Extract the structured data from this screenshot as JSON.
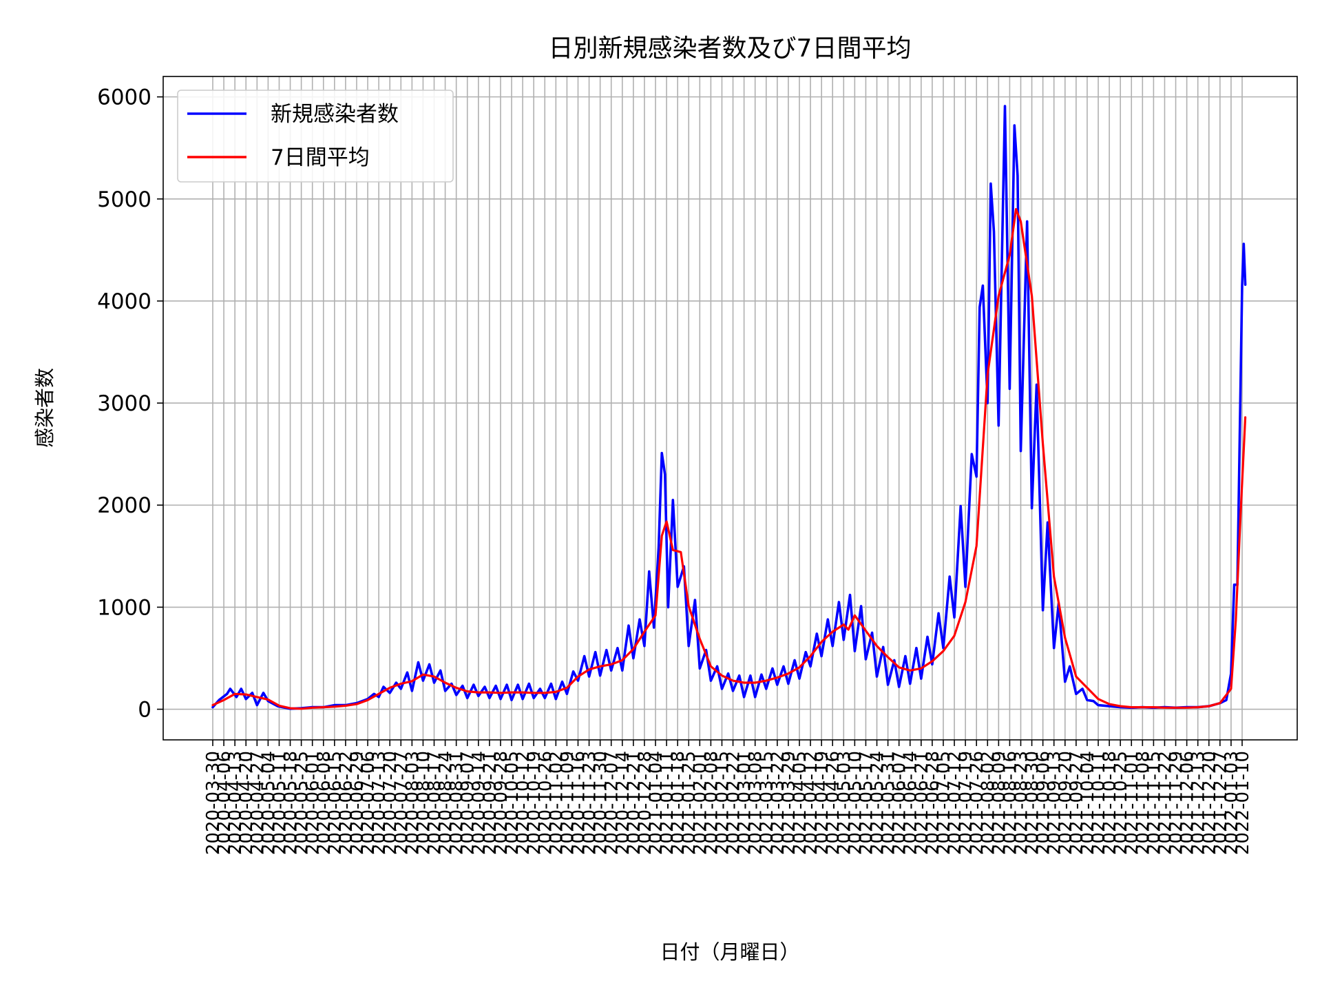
{
  "chart_data": {
    "type": "line",
    "title": "日別新規感染者数及び7日間平均",
    "xlabel": "日付（月曜日）",
    "ylabel": "感染者数",
    "x_start": "2020-03-30",
    "x_end": "2022-01-10",
    "x_tick_interval_days": 7,
    "x_tick_label_rotation": 90,
    "ylim": [
      -300,
      6200
    ],
    "yticks": [
      0,
      1000,
      2000,
      3000,
      4000,
      5000,
      6000
    ],
    "grid": true,
    "legend_position": "upper-left",
    "series": [
      {
        "name": "新規感染者数",
        "color": "#0000ff",
        "points": [
          [
            "2020-03-30",
            20
          ],
          [
            "2020-04-03",
            90
          ],
          [
            "2020-04-08",
            150
          ],
          [
            "2020-04-10",
            200
          ],
          [
            "2020-04-14",
            120
          ],
          [
            "2020-04-17",
            200
          ],
          [
            "2020-04-20",
            100
          ],
          [
            "2020-04-24",
            160
          ],
          [
            "2020-04-27",
            40
          ],
          [
            "2020-05-01",
            160
          ],
          [
            "2020-05-04",
            80
          ],
          [
            "2020-05-10",
            30
          ],
          [
            "2020-05-18",
            5
          ],
          [
            "2020-05-25",
            10
          ],
          [
            "2020-06-01",
            20
          ],
          [
            "2020-06-08",
            20
          ],
          [
            "2020-06-15",
            40
          ],
          [
            "2020-06-22",
            40
          ],
          [
            "2020-06-29",
            60
          ],
          [
            "2020-07-06",
            100
          ],
          [
            "2020-07-10",
            150
          ],
          [
            "2020-07-13",
            120
          ],
          [
            "2020-07-16",
            220
          ],
          [
            "2020-07-20",
            160
          ],
          [
            "2020-07-24",
            260
          ],
          [
            "2020-07-27",
            200
          ],
          [
            "2020-07-31",
            360
          ],
          [
            "2020-08-03",
            180
          ],
          [
            "2020-08-07",
            460
          ],
          [
            "2020-08-10",
            280
          ],
          [
            "2020-08-14",
            440
          ],
          [
            "2020-08-17",
            260
          ],
          [
            "2020-08-21",
            380
          ],
          [
            "2020-08-24",
            180
          ],
          [
            "2020-08-28",
            250
          ],
          [
            "2020-08-31",
            140
          ],
          [
            "2020-09-04",
            230
          ],
          [
            "2020-09-07",
            110
          ],
          [
            "2020-09-11",
            240
          ],
          [
            "2020-09-14",
            130
          ],
          [
            "2020-09-18",
            220
          ],
          [
            "2020-09-21",
            110
          ],
          [
            "2020-09-25",
            230
          ],
          [
            "2020-09-28",
            100
          ],
          [
            "2020-10-02",
            240
          ],
          [
            "2020-10-05",
            90
          ],
          [
            "2020-10-09",
            240
          ],
          [
            "2020-10-12",
            100
          ],
          [
            "2020-10-16",
            250
          ],
          [
            "2020-10-19",
            110
          ],
          [
            "2020-10-23",
            200
          ],
          [
            "2020-10-26",
            110
          ],
          [
            "2020-10-30",
            250
          ],
          [
            "2020-11-02",
            100
          ],
          [
            "2020-11-06",
            270
          ],
          [
            "2020-11-09",
            150
          ],
          [
            "2020-11-13",
            370
          ],
          [
            "2020-11-16",
            280
          ],
          [
            "2020-11-20",
            520
          ],
          [
            "2020-11-23",
            320
          ],
          [
            "2020-11-27",
            560
          ],
          [
            "2020-11-30",
            330
          ],
          [
            "2020-12-04",
            580
          ],
          [
            "2020-12-07",
            380
          ],
          [
            "2020-12-11",
            600
          ],
          [
            "2020-12-14",
            380
          ],
          [
            "2020-12-18",
            820
          ],
          [
            "2020-12-21",
            500
          ],
          [
            "2020-12-25",
            880
          ],
          [
            "2020-12-28",
            620
          ],
          [
            "2020-12-31",
            1350
          ],
          [
            "2021-01-03",
            800
          ],
          [
            "2021-01-06",
            1590
          ],
          [
            "2021-01-08",
            2510
          ],
          [
            "2021-01-10",
            2300
          ],
          [
            "2021-01-12",
            1000
          ],
          [
            "2021-01-15",
            2050
          ],
          [
            "2021-01-18",
            1200
          ],
          [
            "2021-01-22",
            1400
          ],
          [
            "2021-01-25",
            620
          ],
          [
            "2021-01-29",
            1070
          ],
          [
            "2021-02-01",
            400
          ],
          [
            "2021-02-05",
            580
          ],
          [
            "2021-02-08",
            280
          ],
          [
            "2021-02-12",
            420
          ],
          [
            "2021-02-15",
            200
          ],
          [
            "2021-02-19",
            350
          ],
          [
            "2021-02-22",
            180
          ],
          [
            "2021-02-26",
            330
          ],
          [
            "2021-03-01",
            120
          ],
          [
            "2021-03-05",
            330
          ],
          [
            "2021-03-08",
            120
          ],
          [
            "2021-03-12",
            340
          ],
          [
            "2021-03-15",
            200
          ],
          [
            "2021-03-19",
            400
          ],
          [
            "2021-03-22",
            240
          ],
          [
            "2021-03-26",
            420
          ],
          [
            "2021-03-29",
            250
          ],
          [
            "2021-04-02",
            480
          ],
          [
            "2021-04-05",
            300
          ],
          [
            "2021-04-09",
            560
          ],
          [
            "2021-04-12",
            420
          ],
          [
            "2021-04-16",
            740
          ],
          [
            "2021-04-19",
            520
          ],
          [
            "2021-04-23",
            880
          ],
          [
            "2021-04-26",
            620
          ],
          [
            "2021-04-30",
            1050
          ],
          [
            "2021-05-03",
            680
          ],
          [
            "2021-05-07",
            1120
          ],
          [
            "2021-05-10",
            570
          ],
          [
            "2021-05-14",
            1010
          ],
          [
            "2021-05-17",
            490
          ],
          [
            "2021-05-21",
            750
          ],
          [
            "2021-05-24",
            320
          ],
          [
            "2021-05-28",
            610
          ],
          [
            "2021-05-31",
            240
          ],
          [
            "2021-06-04",
            480
          ],
          [
            "2021-06-07",
            220
          ],
          [
            "2021-06-11",
            520
          ],
          [
            "2021-06-14",
            250
          ],
          [
            "2021-06-18",
            600
          ],
          [
            "2021-06-21",
            300
          ],
          [
            "2021-06-25",
            710
          ],
          [
            "2021-06-28",
            440
          ],
          [
            "2021-07-02",
            940
          ],
          [
            "2021-07-05",
            600
          ],
          [
            "2021-07-09",
            1300
          ],
          [
            "2021-07-12",
            900
          ],
          [
            "2021-07-16",
            1990
          ],
          [
            "2021-07-19",
            1200
          ],
          [
            "2021-07-23",
            2500
          ],
          [
            "2021-07-26",
            2280
          ],
          [
            "2021-07-28",
            3940
          ],
          [
            "2021-07-30",
            4150
          ],
          [
            "2021-08-02",
            3000
          ],
          [
            "2021-08-04",
            5150
          ],
          [
            "2021-08-06",
            4680
          ],
          [
            "2021-08-09",
            2780
          ],
          [
            "2021-08-13",
            5910
          ],
          [
            "2021-08-16",
            3140
          ],
          [
            "2021-08-19",
            5720
          ],
          [
            "2021-08-21",
            5230
          ],
          [
            "2021-08-23",
            2530
          ],
          [
            "2021-08-27",
            4780
          ],
          [
            "2021-08-30",
            1970
          ],
          [
            "2021-09-02",
            3180
          ],
          [
            "2021-09-06",
            970
          ],
          [
            "2021-09-09",
            1830
          ],
          [
            "2021-09-13",
            600
          ],
          [
            "2021-09-16",
            1040
          ],
          [
            "2021-09-20",
            270
          ],
          [
            "2021-09-23",
            420
          ],
          [
            "2021-09-27",
            150
          ],
          [
            "2021-10-01",
            200
          ],
          [
            "2021-10-04",
            90
          ],
          [
            "2021-10-08",
            80
          ],
          [
            "2021-10-11",
            40
          ],
          [
            "2021-10-18",
            30
          ],
          [
            "2021-10-25",
            20
          ],
          [
            "2021-11-01",
            15
          ],
          [
            "2021-11-08",
            20
          ],
          [
            "2021-11-15",
            15
          ],
          [
            "2021-11-22",
            20
          ],
          [
            "2021-11-29",
            15
          ],
          [
            "2021-12-06",
            20
          ],
          [
            "2021-12-13",
            20
          ],
          [
            "2021-12-20",
            30
          ],
          [
            "2021-12-27",
            60
          ],
          [
            "2021-12-31",
            90
          ],
          [
            "2022-01-03",
            350
          ],
          [
            "2022-01-05",
            1220
          ],
          [
            "2022-01-07",
            1220
          ],
          [
            "2022-01-10",
            4150
          ],
          [
            "2022-01-11",
            4560
          ],
          [
            "2022-01-12",
            4160
          ]
        ]
      },
      {
        "name": "7日間平均",
        "color": "#ff0000",
        "points": [
          [
            "2020-03-30",
            40
          ],
          [
            "2020-04-06",
            90
          ],
          [
            "2020-04-13",
            150
          ],
          [
            "2020-04-20",
            145
          ],
          [
            "2020-04-27",
            120
          ],
          [
            "2020-05-04",
            95
          ],
          [
            "2020-05-11",
            35
          ],
          [
            "2020-05-18",
            10
          ],
          [
            "2020-05-25",
            5
          ],
          [
            "2020-06-01",
            15
          ],
          [
            "2020-06-08",
            20
          ],
          [
            "2020-06-15",
            25
          ],
          [
            "2020-06-22",
            35
          ],
          [
            "2020-06-29",
            50
          ],
          [
            "2020-07-06",
            90
          ],
          [
            "2020-07-13",
            150
          ],
          [
            "2020-07-20",
            210
          ],
          [
            "2020-07-27",
            250
          ],
          [
            "2020-08-03",
            275
          ],
          [
            "2020-08-10",
            340
          ],
          [
            "2020-08-17",
            320
          ],
          [
            "2020-08-24",
            260
          ],
          [
            "2020-08-31",
            210
          ],
          [
            "2020-09-07",
            175
          ],
          [
            "2020-09-14",
            165
          ],
          [
            "2020-09-21",
            165
          ],
          [
            "2020-09-28",
            160
          ],
          [
            "2020-10-05",
            165
          ],
          [
            "2020-10-12",
            165
          ],
          [
            "2020-10-19",
            160
          ],
          [
            "2020-10-26",
            160
          ],
          [
            "2020-11-02",
            170
          ],
          [
            "2020-11-09",
            210
          ],
          [
            "2020-11-16",
            320
          ],
          [
            "2020-11-23",
            390
          ],
          [
            "2020-11-30",
            420
          ],
          [
            "2020-12-07",
            440
          ],
          [
            "2020-12-14",
            480
          ],
          [
            "2020-12-21",
            590
          ],
          [
            "2020-12-28",
            760
          ],
          [
            "2021-01-04",
            920
          ],
          [
            "2021-01-08",
            1700
          ],
          [
            "2021-01-11",
            1840
          ],
          [
            "2021-01-15",
            1560
          ],
          [
            "2021-01-20",
            1540
          ],
          [
            "2021-01-25",
            1010
          ],
          [
            "2021-02-01",
            690
          ],
          [
            "2021-02-08",
            420
          ],
          [
            "2021-02-15",
            330
          ],
          [
            "2021-02-22",
            280
          ],
          [
            "2021-03-01",
            260
          ],
          [
            "2021-03-08",
            260
          ],
          [
            "2021-03-15",
            280
          ],
          [
            "2021-03-22",
            310
          ],
          [
            "2021-03-29",
            350
          ],
          [
            "2021-04-05",
            410
          ],
          [
            "2021-04-12",
            520
          ],
          [
            "2021-04-19",
            660
          ],
          [
            "2021-04-26",
            760
          ],
          [
            "2021-05-03",
            830
          ],
          [
            "2021-05-06",
            780
          ],
          [
            "2021-05-10",
            920
          ],
          [
            "2021-05-17",
            770
          ],
          [
            "2021-05-24",
            620
          ],
          [
            "2021-05-31",
            510
          ],
          [
            "2021-06-07",
            410
          ],
          [
            "2021-06-14",
            380
          ],
          [
            "2021-06-21",
            400
          ],
          [
            "2021-06-28",
            470
          ],
          [
            "2021-07-05",
            570
          ],
          [
            "2021-07-12",
            720
          ],
          [
            "2021-07-19",
            1050
          ],
          [
            "2021-07-26",
            1600
          ],
          [
            "2021-08-02",
            3280
          ],
          [
            "2021-08-09",
            4050
          ],
          [
            "2021-08-16",
            4450
          ],
          [
            "2021-08-20",
            4900
          ],
          [
            "2021-08-23",
            4780
          ],
          [
            "2021-08-30",
            4050
          ],
          [
            "2021-09-06",
            2600
          ],
          [
            "2021-09-13",
            1300
          ],
          [
            "2021-09-20",
            700
          ],
          [
            "2021-09-27",
            320
          ],
          [
            "2021-10-04",
            210
          ],
          [
            "2021-10-11",
            100
          ],
          [
            "2021-10-18",
            50
          ],
          [
            "2021-10-25",
            30
          ],
          [
            "2021-11-01",
            20
          ],
          [
            "2021-11-08",
            20
          ],
          [
            "2021-11-15",
            20
          ],
          [
            "2021-11-22",
            15
          ],
          [
            "2021-11-29",
            15
          ],
          [
            "2021-12-06",
            15
          ],
          [
            "2021-12-13",
            20
          ],
          [
            "2021-12-20",
            30
          ],
          [
            "2021-12-27",
            60
          ],
          [
            "2022-01-03",
            200
          ],
          [
            "2022-01-06",
            870
          ],
          [
            "2022-01-09",
            1900
          ],
          [
            "2022-01-12",
            2860
          ]
        ]
      }
    ]
  }
}
